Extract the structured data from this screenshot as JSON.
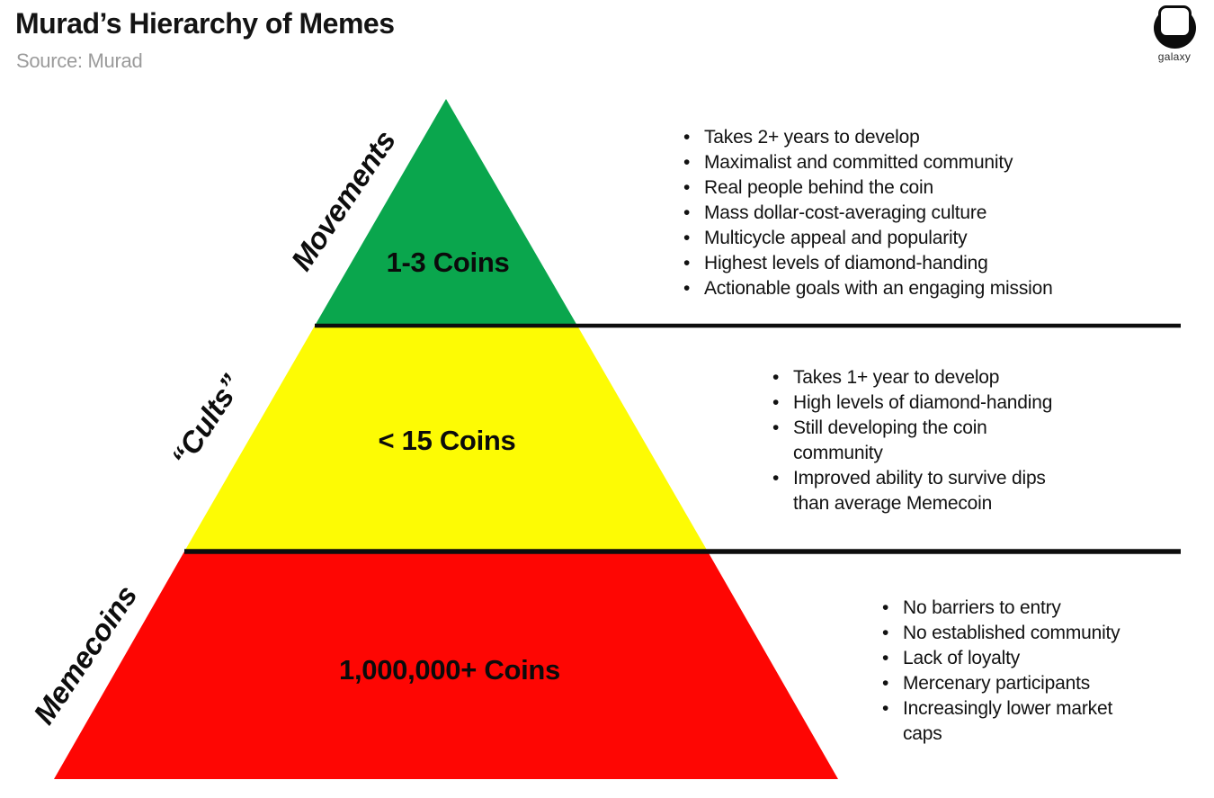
{
  "page": {
    "title": "Murad’s Hierarchy of Memes",
    "source": "Source: Murad",
    "logo": {
      "brand": "galaxy"
    }
  },
  "colors": {
    "movements_green": "#0aa64d",
    "cults_yellow": "#fdfb04",
    "memecoins_red": "#fe0603",
    "divider_black": "#0d0d0d"
  },
  "chart_data": {
    "type": "pyramid",
    "title": "Murad’s Hierarchy of Memes",
    "source": "Source: Murad",
    "tiers": [
      {
        "rank": 1,
        "label": "Movements",
        "coins": "1-3 Coins",
        "color": "#0aa64d",
        "bullets": [
          "Takes 2+ years to develop",
          "Maximalist and committed community",
          "Real people behind the coin",
          "Mass dollar-cost-averaging culture",
          "Multicycle appeal and popularity",
          "Highest levels of diamond-handing",
          "Actionable goals with an engaging mission"
        ]
      },
      {
        "rank": 2,
        "label": "“Cults”",
        "coins": "< 15 Coins",
        "color": "#fdfb04",
        "bullets": [
          "Takes 1+ year to develop",
          "High levels of diamond-handing",
          "Still developing the coin community",
          "Improved ability to survive dips than average Memecoin"
        ]
      },
      {
        "rank": 3,
        "label": "Memecoins",
        "coins": "1,000,000+ Coins",
        "color": "#fe0603",
        "bullets": [
          "No barriers to entry",
          "No established community",
          "Lack of loyalty",
          "Mercenary participants",
          "Increasingly lower market caps"
        ]
      }
    ]
  }
}
